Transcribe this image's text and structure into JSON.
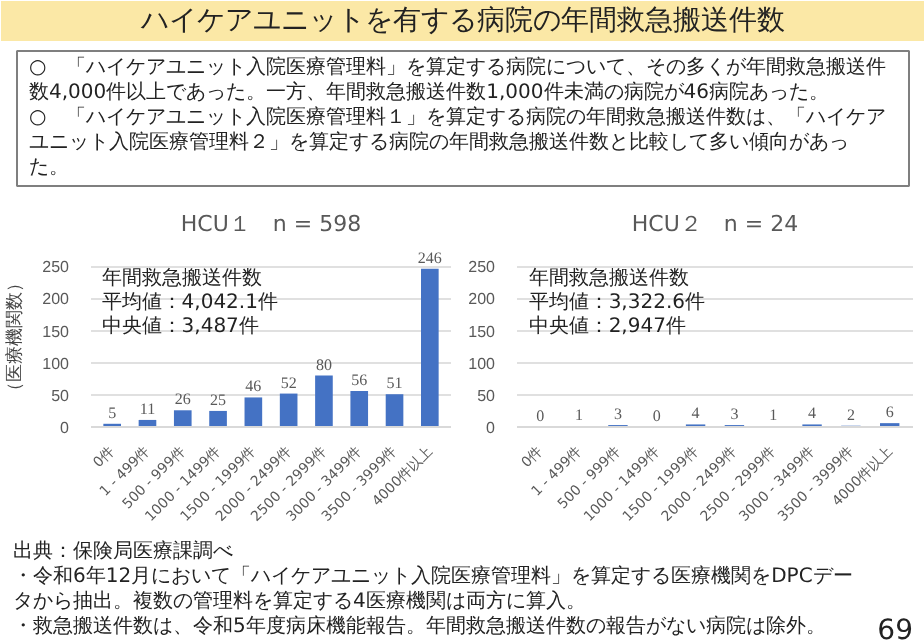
{
  "chart_data": [
    {
      "type": "other",
      "title": "ハイケアユニットを有する病院の年間救急搬送件数",
      "annotations": [
        "○　「ハイケアユニット入院医療管理料」を算定する病院について、その多くが年間救急搬送件数4,000件以上であった。一方、年間救急搬送件数1,000件未満の病院が46病院あった。",
        "○　「ハイケアユニット入院医療管理料１」を算定する病院の年間救急搬送件数は、「ハイケアユニット入院医療管理料２」を算定する病院の年間救急搬送件数と比較して多い傾向があった。"
      ]
    },
    {
      "type": "bar",
      "title": "HCU１　n = 598",
      "ylabel": "（医療機関数）",
      "categories": [
        "0件",
        "1 - 499件",
        "500 - 999件",
        "1000 - 1499件",
        "1500 - 1999件",
        "2000 - 2499件",
        "2500 - 2999件",
        "3000 - 3499件",
        "3500 - 3999件",
        "4000件以上"
      ],
      "values": [
        5,
        11,
        26,
        25,
        46,
        52,
        80,
        56,
        51,
        246
      ],
      "color": "#4472c4",
      "ylim": [
        0,
        250
      ],
      "yticks": [
        0,
        50,
        100,
        150,
        200,
        250
      ],
      "grid": "y",
      "data_labels": true,
      "annotations": [
        "年間救急搬送件数",
        "平均値：4,042.1件",
        "中央値：3,487件"
      ]
    },
    {
      "type": "bar",
      "title": "HCU２　n = 24",
      "categories": [
        "0件",
        "1 - 499件",
        "500 - 999件",
        "1000 - 1499件",
        "1500 - 1999件",
        "2000 - 2499件",
        "2500 - 2999件",
        "3000 - 3499件",
        "3500 - 3999件",
        "4000件以上"
      ],
      "values": [
        0,
        1,
        3,
        0,
        4,
        3,
        1,
        4,
        2,
        6
      ],
      "color": "#4472c4",
      "ylim": [
        0,
        250
      ],
      "yticks": [
        0,
        50,
        100,
        150,
        200,
        250
      ],
      "grid": "y",
      "data_labels": true,
      "annotations": [
        "年間救急搬送件数",
        "平均値：3,322.6件",
        "中央値：2,947件"
      ]
    },
    {
      "type": "other",
      "annotations": [
        "出典：保険局医療課調べ",
        "・令和6年12月において「ハイケアユニット入院医療管理料」を算定する医療機関をDPCデータから抽出。複数の管理料を算定する4医療機関は両方に算入。",
        "・救急搬送件数は、令和5年度病床機能報告。年間救急搬送件数の報告がない病院は除外。",
        "69"
      ]
    }
  ]
}
